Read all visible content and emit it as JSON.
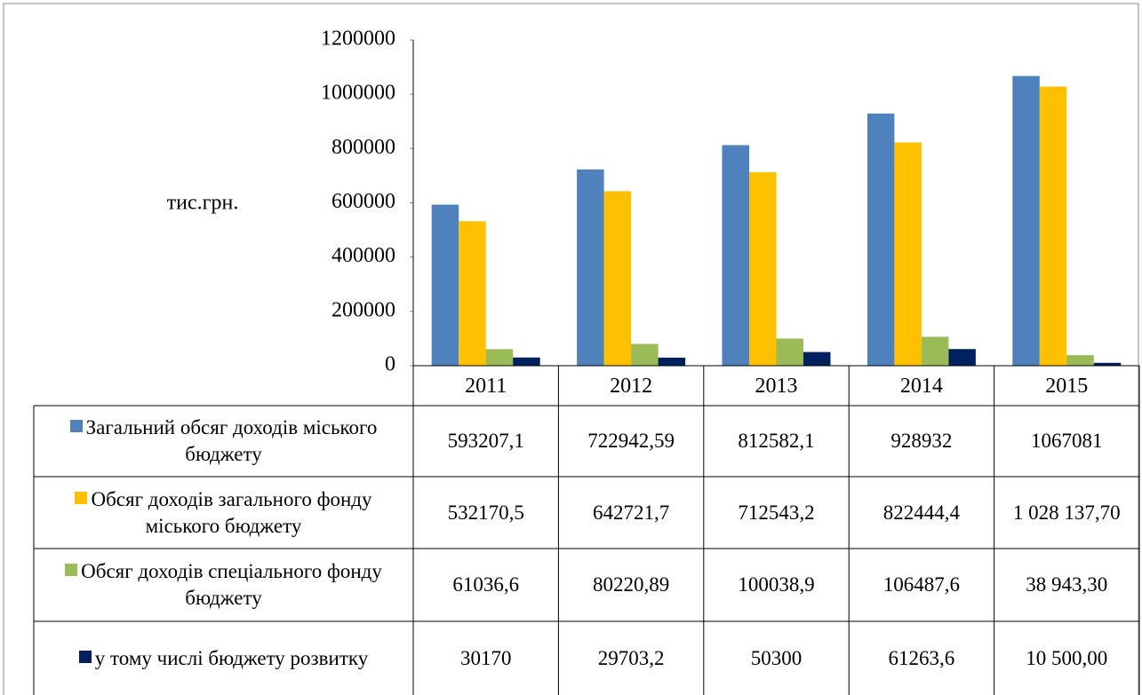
{
  "chart_data": {
    "type": "bar",
    "y_label": "тис.грн.",
    "categories": [
      "2011",
      "2012",
      "2013",
      "2014",
      "2015"
    ],
    "ylim": [
      0,
      1200000
    ],
    "yticks": [
      0,
      200000,
      400000,
      600000,
      800000,
      1000000,
      1200000
    ],
    "series": [
      {
        "name": "Загальний обсяг доходів міського бюджету",
        "color": "#4f81bd",
        "values": [
          593207.1,
          722942.59,
          812582.1,
          928932,
          1067081
        ],
        "value_labels": [
          "593207,1",
          "722942,59",
          "812582,1",
          "928932",
          "1067081"
        ]
      },
      {
        "name": "Обсяг доходів загального фонду міського бюджету",
        "color": "#ffc000",
        "values": [
          532170.5,
          642721.7,
          712543.2,
          822444.4,
          1028137.7
        ],
        "value_labels": [
          "532170,5",
          "642721,7",
          "712543,2",
          "822444,4",
          "1 028 137,70"
        ]
      },
      {
        "name": "Обсяг доходів спеціального фонду бюджету",
        "color": "#9bbb59",
        "values": [
          61036.6,
          80220.89,
          100038.9,
          106487.6,
          38943.3
        ],
        "value_labels": [
          "61036,6",
          "80220,89",
          "100038,9",
          "106487,6",
          "38 943,30"
        ]
      },
      {
        "name": "у тому числі бюджету розвитку",
        "color": "#002060",
        "values": [
          30170,
          29703.2,
          50300,
          61263.6,
          10500
        ],
        "value_labels": [
          "30170",
          "29703,2",
          "50300",
          "61263,6",
          "10 500,00"
        ]
      }
    ]
  }
}
